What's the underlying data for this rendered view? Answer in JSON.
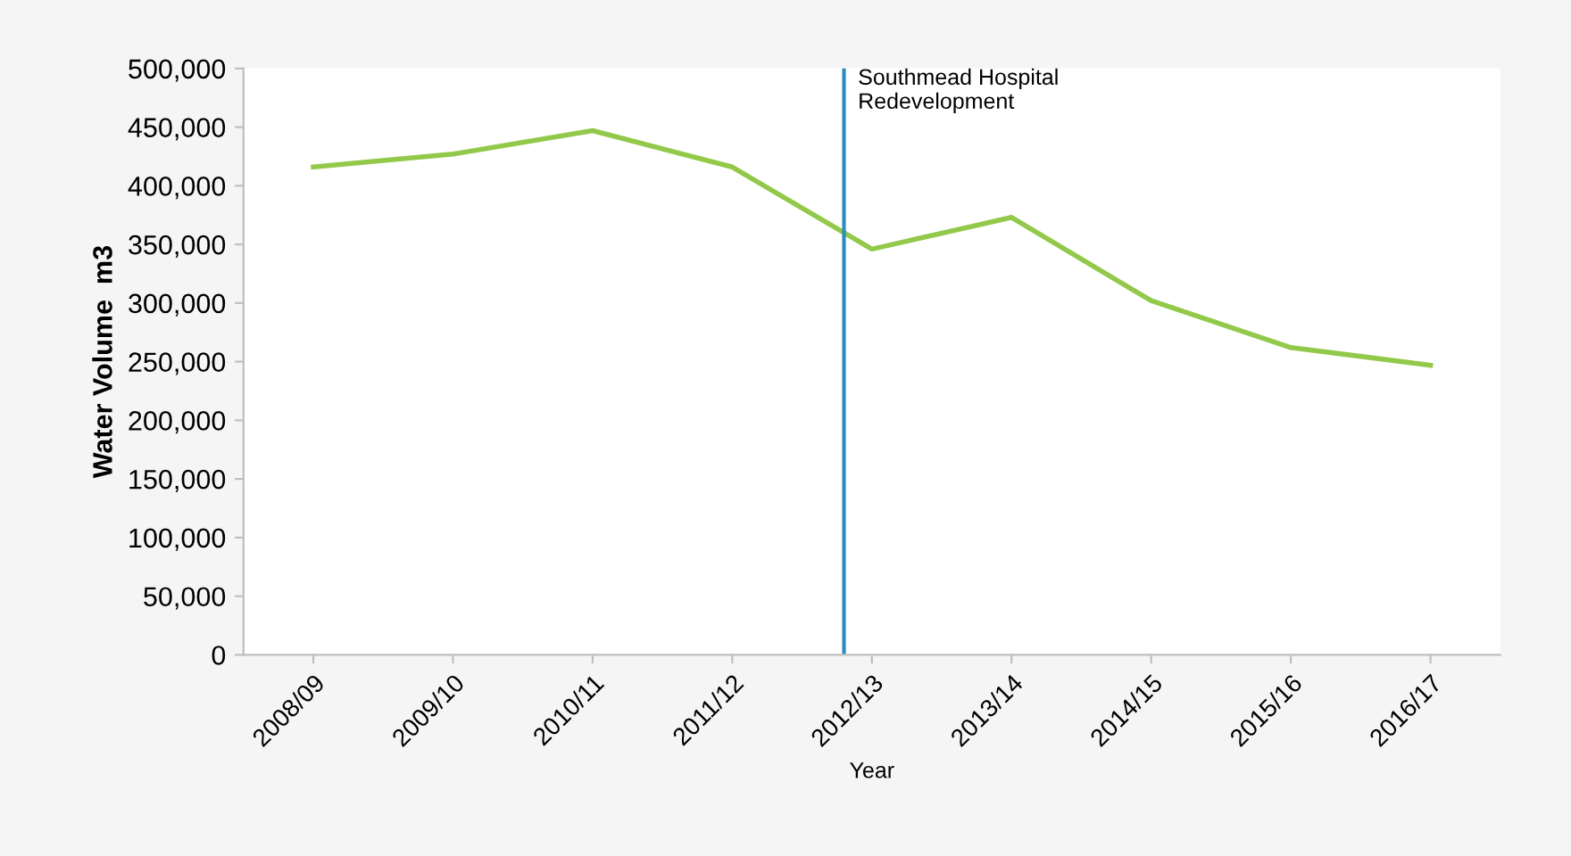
{
  "chart_data": {
    "type": "line",
    "xlabel": "Year",
    "ylabel": "Water Volume  m3",
    "categories": [
      "2008/09",
      "2009/10",
      "2010/11",
      "2011/12",
      "2012/13",
      "2013/14",
      "2014/15",
      "2015/16",
      "2016/17"
    ],
    "series": [
      {
        "color": "#92c94a",
        "values": [
          416000,
          427000,
          447000,
          416000,
          346000,
          373000,
          302000,
          262000,
          247000
        ]
      }
    ],
    "ylim": [
      0,
      500000
    ],
    "yticks": [
      {
        "value": 0,
        "label": "0"
      },
      {
        "value": 50000,
        "label": "50,000"
      },
      {
        "value": 100000,
        "label": "100,000"
      },
      {
        "value": 150000,
        "label": "150,000"
      },
      {
        "value": 200000,
        "label": "200,000"
      },
      {
        "value": 250000,
        "label": "250,000"
      },
      {
        "value": 300000,
        "label": "300,000"
      },
      {
        "value": 350000,
        "label": "350,000"
      },
      {
        "value": 400000,
        "label": "400,000"
      },
      {
        "value": 450000,
        "label": "450,000"
      },
      {
        "value": 500000,
        "label": "500,000"
      }
    ],
    "ref_lines": [
      {
        "axis": "x",
        "value": "2012/13",
        "label": "Southmead Hospital\nRedevelopment",
        "color": "#2e8bc0"
      }
    ],
    "grid": false,
    "legend": false
  }
}
